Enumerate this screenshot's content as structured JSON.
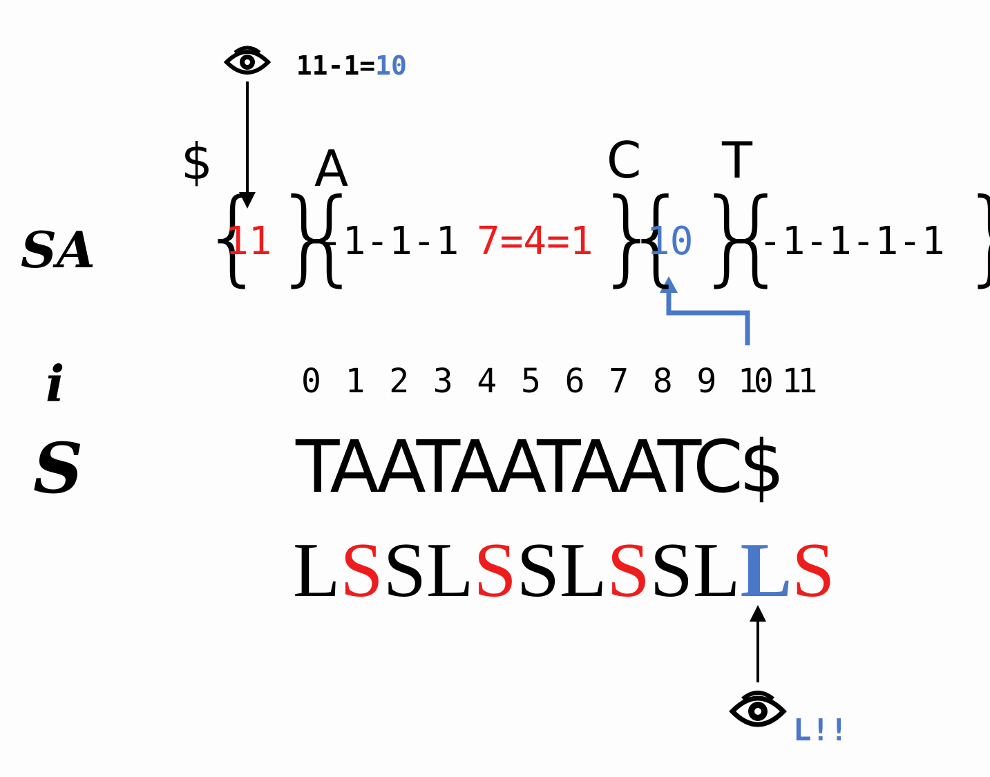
{
  "colors": {
    "red": "#ee1c1c",
    "blue": "#4a78c8",
    "black": "#000000"
  },
  "top_note": {
    "prefix": "11-1=",
    "result": "10"
  },
  "bucket_heads": [
    {
      "char": "$"
    },
    {
      "char": "A"
    },
    {
      "char": "C"
    },
    {
      "char": "T"
    }
  ],
  "row_labels": {
    "sa": "SA",
    "i": "i",
    "s": "S"
  },
  "sa": {
    "dollar_bucket": "11",
    "a_bucket_plain": "-1-1-1",
    "a_bucket_red": "7=4=1",
    "c_bucket": "10",
    "t_bucket": "-1-1-1-1"
  },
  "indices": [
    "0",
    "1",
    "2",
    "3",
    "4",
    "5",
    "6",
    "7",
    "8",
    "9",
    "10",
    "11"
  ],
  "string_s": "TAATAATAATC$",
  "types": [
    {
      "t": "L",
      "c": "black"
    },
    {
      "t": "S",
      "c": "red"
    },
    {
      "t": "S",
      "c": "black"
    },
    {
      "t": "L",
      "c": "black"
    },
    {
      "t": "S",
      "c": "red"
    },
    {
      "t": "S",
      "c": "black"
    },
    {
      "t": "L",
      "c": "black"
    },
    {
      "t": "S",
      "c": "red"
    },
    {
      "t": "S",
      "c": "black"
    },
    {
      "t": "L",
      "c": "black"
    },
    {
      "t": "L",
      "c": "blue"
    },
    {
      "t": "S",
      "c": "red"
    }
  ],
  "bottom_note": "L!!",
  "icons": {
    "top": "eye-icon",
    "bottom": "eye-icon"
  }
}
